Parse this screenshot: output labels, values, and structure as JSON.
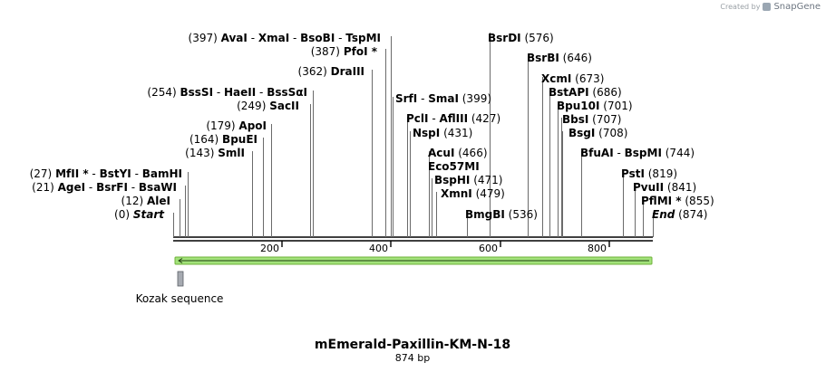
{
  "credit": {
    "prefix": "Created by",
    "brand": "SnapGene"
  },
  "title": "mEmerald-Paxillin-KM-N-18",
  "length_label": "874 bp",
  "seq_length": 874,
  "ticks": [
    "200",
    "400",
    "600",
    "800"
  ],
  "features": [
    {
      "name": "Kozak sequence",
      "start": 9,
      "end": 18,
      "color": "#a6aab1"
    },
    {
      "name": "orf-arrow",
      "start": 1,
      "end": 874,
      "color": "#a2e27a"
    }
  ],
  "sites": [
    {
      "parts": [
        "(397) ",
        "AvaI",
        " - ",
        "XmaI",
        " - ",
        "BsoBI",
        " - ",
        "TspMI"
      ],
      "pos": 397
    },
    {
      "parts": [
        "(387) ",
        "PfoI *"
      ],
      "pos": 387
    },
    {
      "parts": [
        "(362) ",
        "DraIII"
      ],
      "pos": 362
    },
    {
      "parts": [
        "(254) ",
        "BssSI",
        " - ",
        "HaeII",
        " - ",
        "BssSαI"
      ],
      "pos": 254
    },
    {
      "parts": [
        "(249) ",
        "SacII"
      ],
      "pos": 249
    },
    {
      "parts": [
        "(179) ",
        "ApoI"
      ],
      "pos": 179
    },
    {
      "parts": [
        "(164) ",
        "BpuEI"
      ],
      "pos": 164
    },
    {
      "parts": [
        "(143) ",
        "SmlI"
      ],
      "pos": 143
    },
    {
      "parts": [
        "(27) ",
        "MfII *",
        " - ",
        "BstYI",
        " - ",
        "BamHI"
      ],
      "pos": 27
    },
    {
      "parts": [
        "(21) ",
        "AgeI",
        " - ",
        "BsrFI",
        " - ",
        "BsaWI"
      ],
      "pos": 21
    },
    {
      "parts": [
        "(12) ",
        "AleI"
      ],
      "pos": 12
    },
    {
      "parts": [
        "(0) ",
        "Start"
      ],
      "pos": 0
    },
    {
      "parts": [
        "SrfI",
        " - ",
        "SmaI",
        "  (399)"
      ],
      "pos": 399
    },
    {
      "parts": [
        "PclI",
        " - ",
        "AflIII",
        "  (427)"
      ],
      "pos": 427
    },
    {
      "parts": [
        "NspI",
        "  (431)"
      ],
      "pos": 431
    },
    {
      "parts": [
        "AcuI",
        "  (466)"
      ],
      "pos": 466
    },
    {
      "parts": [
        "Eco57MI"
      ],
      "pos": 466
    },
    {
      "parts": [
        "BspHI",
        "  (471)"
      ],
      "pos": 471
    },
    {
      "parts": [
        "XmnI",
        "  (479)"
      ],
      "pos": 479
    },
    {
      "parts": [
        "BmgBI",
        "  (536)"
      ],
      "pos": 536
    },
    {
      "parts": [
        "BsrDI",
        "  (576)"
      ],
      "pos": 576
    },
    {
      "parts": [
        "BsrBI",
        "  (646)"
      ],
      "pos": 646
    },
    {
      "parts": [
        "XcmI",
        "  (673)"
      ],
      "pos": 673
    },
    {
      "parts": [
        "BstAPI",
        "  (686)"
      ],
      "pos": 686
    },
    {
      "parts": [
        "Bpu10I",
        "  (701)"
      ],
      "pos": 701
    },
    {
      "parts": [
        "BbsI",
        "  (707)"
      ],
      "pos": 707
    },
    {
      "parts": [
        "BsgI",
        "  (708)"
      ],
      "pos": 708
    },
    {
      "parts": [
        "BfuAI",
        " - ",
        "BspMI",
        "  (744)"
      ],
      "pos": 744
    },
    {
      "parts": [
        "PstI",
        "  (819)"
      ],
      "pos": 819
    },
    {
      "parts": [
        "PvuII",
        "  (841)"
      ],
      "pos": 841
    },
    {
      "parts": [
        "PflMI *",
        "  (855)"
      ],
      "pos": 855
    },
    {
      "parts": [
        "End",
        "  (874)"
      ],
      "pos": 874
    }
  ]
}
